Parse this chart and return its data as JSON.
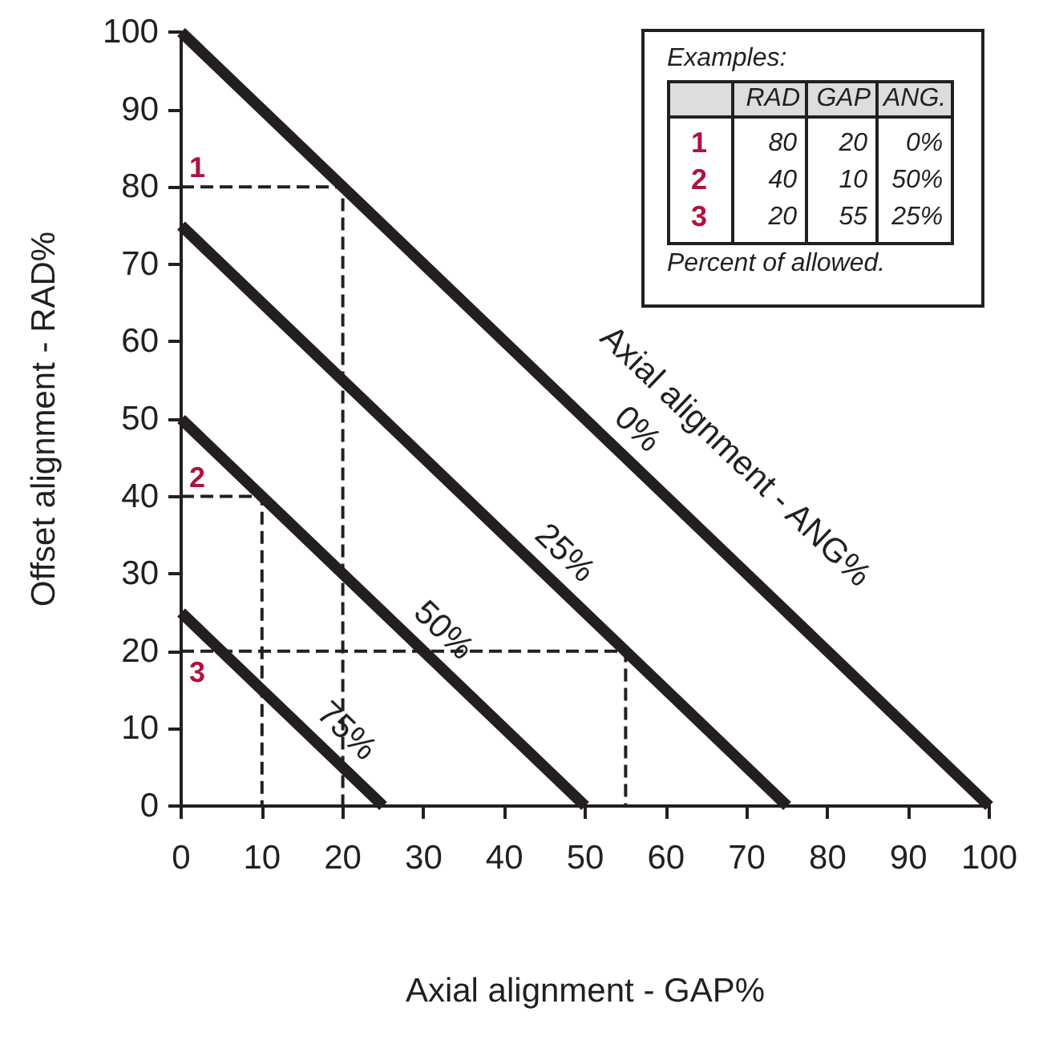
{
  "chart_data": {
    "type": "line",
    "xlabel": "Axial alignment - GAP%",
    "ylabel": "Offset alignment - RAD%",
    "xlim": [
      0,
      100
    ],
    "ylim": [
      0,
      100
    ],
    "xticks": [
      0,
      10,
      20,
      30,
      40,
      50,
      60,
      70,
      80,
      90,
      100
    ],
    "yticks": [
      0,
      10,
      20,
      30,
      40,
      50,
      60,
      70,
      80,
      90,
      100
    ],
    "grid": false,
    "legend": false,
    "marker": "none",
    "series": [
      {
        "name": "0%",
        "color": "#231f20",
        "x": [
          0,
          100
        ],
        "values": [
          100,
          0
        ]
      },
      {
        "name": "25%",
        "color": "#231f20",
        "x": [
          0,
          75
        ],
        "values": [
          75,
          0
        ]
      },
      {
        "name": "50%",
        "color": "#231f20",
        "x": [
          0,
          50
        ],
        "values": [
          50,
          0
        ]
      },
      {
        "name": "75%",
        "color": "#231f20",
        "x": [
          0,
          25
        ],
        "values": [
          25,
          0
        ]
      },
      {
        "color": "#231f20",
        "line_style": "dashed",
        "x": [
          0,
          20,
          20
        ],
        "values": [
          80,
          80,
          0
        ]
      },
      {
        "color": "#231f20",
        "line_style": "dashed",
        "x": [
          0,
          10,
          10
        ],
        "values": [
          40,
          40,
          0
        ]
      },
      {
        "color": "#231f20",
        "line_style": "dashed",
        "x": [
          0,
          55,
          55
        ],
        "values": [
          20,
          20,
          0
        ]
      }
    ],
    "annotations": [
      "Axial alignment - ANG%",
      "Examples:",
      "RAD",
      "GAP",
      "ANG.",
      "1",
      "80",
      "20",
      "0%",
      "2",
      "40",
      "10",
      "50%",
      "3",
      "20",
      "55",
      "25%",
      "Percent of allowed.",
      "1",
      "2",
      "3"
    ]
  }
}
